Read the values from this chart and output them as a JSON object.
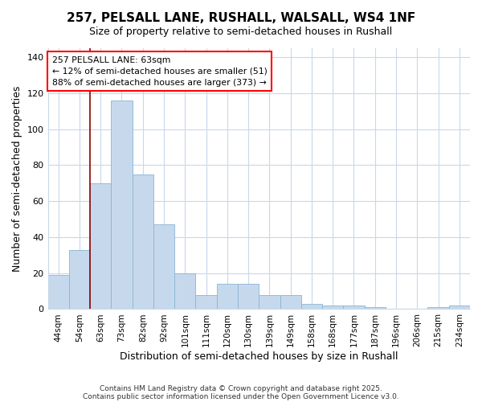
{
  "title_line1": "257, PELSALL LANE, RUSHALL, WALSALL, WS4 1NF",
  "title_line2": "Size of property relative to semi-detached houses in Rushall",
  "xlabel": "Distribution of semi-detached houses by size in Rushall",
  "ylabel": "Number of semi-detached properties",
  "categories": [
    "44sqm",
    "54sqm",
    "63sqm",
    "73sqm",
    "82sqm",
    "92sqm",
    "101sqm",
    "111sqm",
    "120sqm",
    "130sqm",
    "139sqm",
    "149sqm",
    "158sqm",
    "168sqm",
    "177sqm",
    "187sqm",
    "196sqm",
    "206sqm",
    "215sqm",
    "234sqm"
  ],
  "values": [
    19,
    33,
    70,
    116,
    75,
    47,
    20,
    8,
    14,
    14,
    8,
    8,
    3,
    2,
    2,
    1,
    0,
    0,
    1,
    2
  ],
  "bar_color": "#c6d9ec",
  "bar_edge_color": "#8ab4d4",
  "red_line_index": 2,
  "ylim": [
    0,
    145
  ],
  "yticks": [
    0,
    20,
    40,
    60,
    80,
    100,
    120,
    140
  ],
  "annotation_text": "257 PELSALL LANE: 63sqm\n← 12% of semi-detached houses are smaller (51)\n88% of semi-detached houses are larger (373) →",
  "footer_line1": "Contains HM Land Registry data © Crown copyright and database right 2025.",
  "footer_line2": "Contains public sector information licensed under the Open Government Licence v3.0.",
  "background_color": "#ffffff",
  "plot_bg_color": "#ffffff",
  "grid_color": "#c8d8ea"
}
